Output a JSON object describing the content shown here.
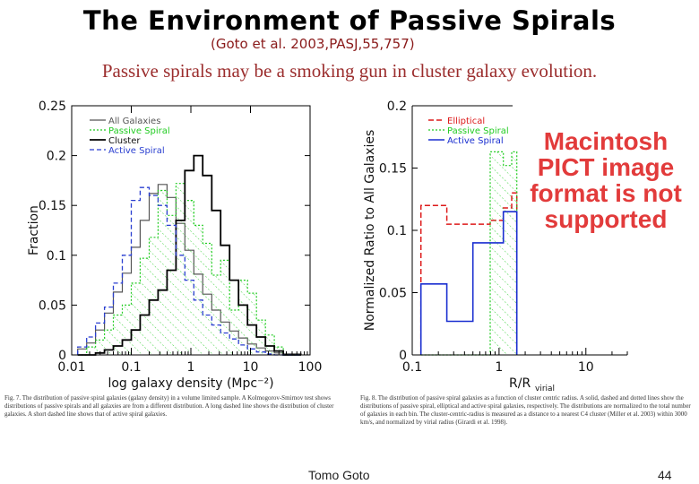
{
  "slide": {
    "title": "The Environment of Passive Spirals",
    "citation": "(Goto et al. 2003,PASJ,55,757)",
    "subtitle": "Passive spirals may be a smoking gun in cluster galaxy evolution.",
    "author": "Tomo Goto",
    "page": "44"
  },
  "placeholder_text": "Macintosh PICT image format is not supported",
  "captions": {
    "left": "Fig. 7. The distribution of passive spiral galaxies (galaxy density) in a volume limited sample. A Kolmogorov-Smirnov test shows distributions of passive spirals and all galaxies are from a different distribution. A long dashed line shows the distribution of cluster galaxies. A short dashed line shows that of active spiral galaxies.",
    "right": "Fig. 8. The distribution of passive spiral galaxies as a function of cluster centric radius. A solid, dashed and dotted lines show the distributions of passive spiral, elliptical and active spiral galaxies, respectively. The distributions are normalized to the total number of galaxies in each bin. The cluster-centric-radius is measured as a distance to a nearest C4 cluster (Miller et al. 2003) within 3000 km/s, and normalized by virial radius (Girardi et al. 1998)."
  },
  "chart_data": [
    {
      "type": "line",
      "xscale": "log",
      "xlim": [
        0.01,
        100
      ],
      "ylim": [
        0,
        0.25
      ],
      "xlabel": "log galaxy density (Mpc⁻²)",
      "ylabel": "Fraction",
      "xticks": [
        "0.01",
        "0.1",
        "1",
        "10",
        "100"
      ],
      "yticks": [
        "0",
        "0.05",
        "0.1",
        "0.15",
        "0.2",
        "0.25"
      ],
      "legend": [
        "All Galaxies",
        "Passive Spiral",
        "Cluster",
        "Active Spiral"
      ],
      "legend_position": "top-left",
      "colors": {
        "all": "#555555",
        "passive": "#22cc22",
        "cluster": "#000000",
        "active": "#2a3fd0"
      },
      "bin_edges": [
        0.0126,
        0.0178,
        0.0251,
        0.0355,
        0.0501,
        0.0708,
        0.1,
        0.141,
        0.2,
        0.282,
        0.398,
        0.562,
        0.794,
        1.12,
        1.58,
        2.24,
        3.16,
        4.47,
        6.31,
        8.91,
        12.6,
        17.8,
        25.1,
        35.5,
        50.1,
        70.8
      ],
      "series": [
        {
          "name": "All Galaxies",
          "values": [
            0.006,
            0.012,
            0.025,
            0.042,
            0.063,
            0.082,
            0.108,
            0.135,
            0.162,
            0.171,
            0.158,
            0.132,
            0.105,
            0.081,
            0.061,
            0.045,
            0.033,
            0.024,
            0.017,
            0.011,
            0.007,
            0.004,
            0.002,
            0.001,
            0.001
          ]
        },
        {
          "name": "Passive Spiral",
          "values": [
            0.0,
            0.008,
            0.015,
            0.025,
            0.04,
            0.05,
            0.072,
            0.097,
            0.118,
            0.165,
            0.14,
            0.172,
            0.155,
            0.13,
            0.112,
            0.08,
            0.095,
            0.045,
            0.075,
            0.062,
            0.035,
            0.02,
            0.008,
            0.0,
            0.0
          ]
        },
        {
          "name": "Cluster",
          "values": [
            0.0,
            0.0,
            0.002,
            0.005,
            0.009,
            0.015,
            0.025,
            0.04,
            0.055,
            0.065,
            0.085,
            0.135,
            0.185,
            0.2,
            0.18,
            0.145,
            0.11,
            0.075,
            0.05,
            0.03,
            0.018,
            0.009,
            0.004,
            0.0,
            0.0
          ]
        },
        {
          "name": "Active Spiral",
          "values": [
            0.008,
            0.018,
            0.032,
            0.048,
            0.072,
            0.1,
            0.155,
            0.168,
            0.16,
            0.15,
            0.13,
            0.1,
            0.075,
            0.055,
            0.04,
            0.03,
            0.022,
            0.016,
            0.01,
            0.006,
            0.003,
            0.001,
            0.0,
            0.0,
            0.0
          ]
        }
      ]
    },
    {
      "type": "line",
      "xscale": "log",
      "xlim": [
        0.1,
        30
      ],
      "ylim": [
        0,
        0.2
      ],
      "xlabel": "R/R",
      "xlabel_sub": "virial",
      "ylabel": "Normalized Ratio to All Galaxies",
      "xticks": [
        "0.1",
        "1",
        "10"
      ],
      "yticks": [
        "0",
        "0.05",
        "0.1",
        "0.15",
        "0.2"
      ],
      "legend": [
        "Elliptical",
        "Passive Spiral",
        "Active Spiral"
      ],
      "legend_position": "top-left",
      "colors": {
        "elliptical": "#dd1a1a",
        "passive": "#22cc22",
        "active": "#1a2fd0"
      },
      "bin_edges": [
        0.126,
        0.25,
        0.5,
        0.79,
        1.12,
        1.4,
        1.6
      ],
      "series": [
        {
          "name": "Elliptical",
          "values": [
            0.12,
            0.105,
            0.105,
            0.108,
            0.118,
            0.13
          ]
        },
        {
          "name": "Passive Spiral",
          "values": [
            0.0,
            0.0,
            0.0,
            0.163,
            0.152,
            0.163
          ]
        },
        {
          "name": "Active Spiral",
          "values": [
            0.057,
            0.027,
            0.09,
            0.09,
            0.115,
            0.115
          ]
        }
      ]
    }
  ]
}
